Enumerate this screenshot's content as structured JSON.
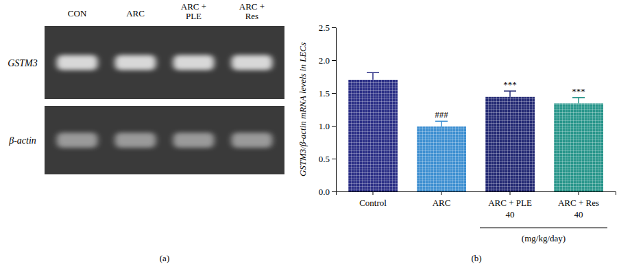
{
  "chart_data": [
    {
      "type": "gel",
      "panel_label": "(a)",
      "lanes": [
        "CON",
        "ARC",
        "ARC +\nPLE",
        "ARC +\nRes"
      ],
      "rows": [
        "GSTM3",
        "β-actin"
      ]
    },
    {
      "type": "bar",
      "panel_label": "(b)",
      "y_label": "GSTM3/β-actin mRNA levels in LECs",
      "categories": [
        "Control",
        "ARC",
        "ARC + PLE\n40",
        "ARC + Res\n40"
      ],
      "values": [
        1.7,
        0.99,
        1.44,
        1.34
      ],
      "errors": [
        0.11,
        0.08,
        0.09,
        0.09
      ],
      "colors": [
        "#2b2f86",
        "#3d8fd1",
        "#242a74",
        "#27958a"
      ],
      "annotations": [
        null,
        "###",
        "***",
        "***"
      ],
      "bracket_label": "(mg/kg/day)",
      "ylim": [
        0,
        2.5
      ],
      "yticks": [
        {
          "value": 0,
          "label": "0.0"
        },
        0.5,
        {
          "value": 1,
          "label": "1.0"
        },
        1.5,
        {
          "value": 2,
          "label": "2.0"
        },
        2.5
      ]
    }
  ]
}
